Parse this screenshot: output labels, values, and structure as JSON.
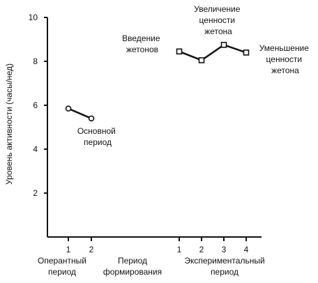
{
  "chart_data": {
    "type": "line",
    "ylabel": "Уровень активности (часы/нед)",
    "ylim": [
      0,
      10
    ],
    "y_ticks": [
      2,
      4,
      6,
      8,
      10
    ],
    "grid": false,
    "phases": [
      {
        "name": "Оперантный период",
        "ticks": [
          "1",
          "2"
        ]
      },
      {
        "name": "Период формирования",
        "ticks": []
      },
      {
        "name": "Экспериментальный период",
        "ticks": [
          "1",
          "2",
          "3",
          "4"
        ]
      }
    ],
    "series": [
      {
        "phase": "Оперантный период",
        "x": [
          1,
          2
        ],
        "y": [
          5.85,
          5.4
        ],
        "marker": "circle"
      },
      {
        "phase": "Экспериментальный период",
        "x": [
          1,
          2,
          3,
          4
        ],
        "y": [
          8.45,
          8.05,
          8.75,
          8.4
        ],
        "marker": "square"
      }
    ],
    "annotations": [
      {
        "id": "baseline",
        "lines": [
          "Основной",
          "период"
        ]
      },
      {
        "id": "intro",
        "lines": [
          "Введение",
          "жетонов"
        ]
      },
      {
        "id": "increase",
        "lines": [
          "Увеличение",
          "ценности",
          "жетона"
        ]
      },
      {
        "id": "decrease",
        "lines": [
          "Уменьшение",
          "ценности",
          "жетона"
        ]
      }
    ]
  }
}
